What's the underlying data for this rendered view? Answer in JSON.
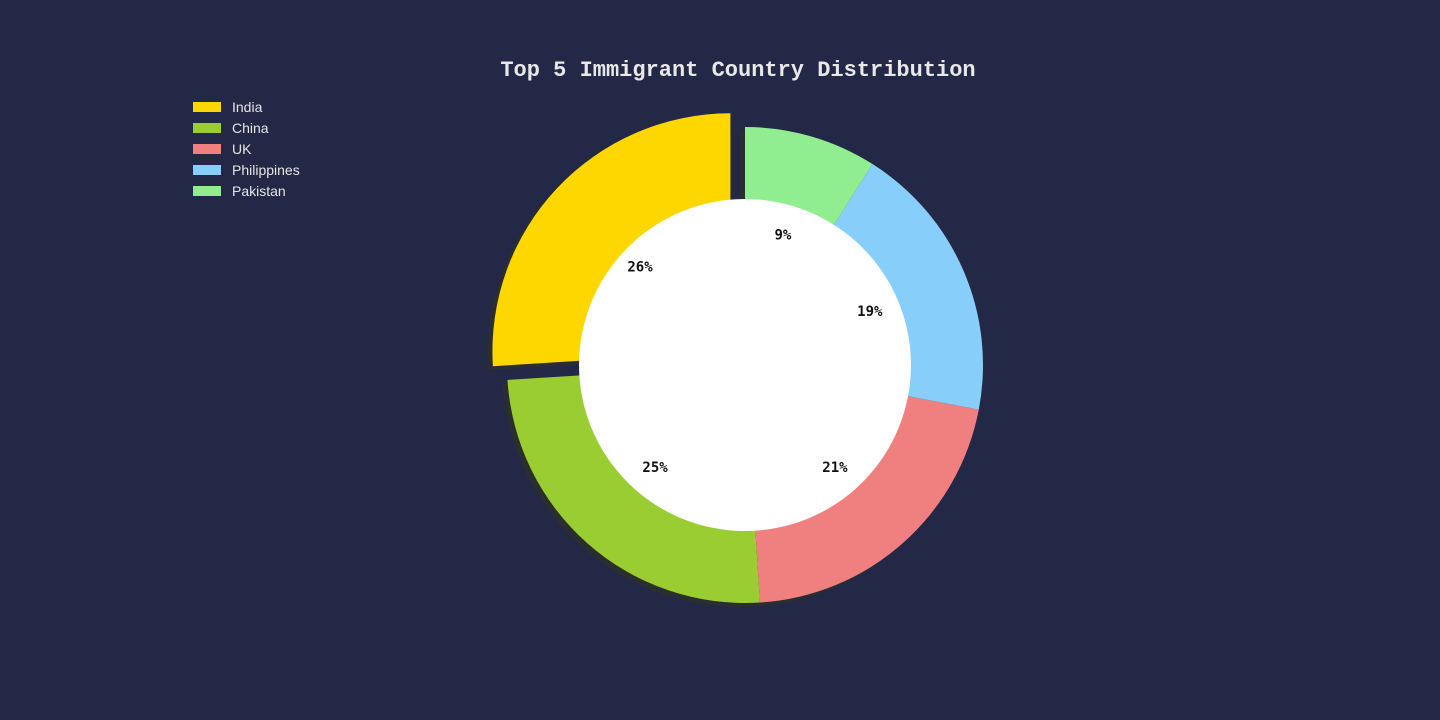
{
  "chart_data": {
    "type": "pie",
    "title": "Top 5 Immigrant Country Distribution",
    "donut": true,
    "legend_position": "top-left",
    "slices": [
      {
        "label": "India",
        "value": 26,
        "display": "26%",
        "color": "#FFD700",
        "pulled": true
      },
      {
        "label": "China",
        "value": 25,
        "display": "25%",
        "color": "#9ACD32",
        "pulled": false
      },
      {
        "label": "UK",
        "value": 21,
        "display": "21%",
        "color": "#F08080",
        "pulled": false
      },
      {
        "label": "Philippines",
        "value": 19,
        "display": "19%",
        "color": "#87CEFA",
        "pulled": false
      },
      {
        "label": "Pakistan",
        "value": 9,
        "display": "9%",
        "color": "#90EE90",
        "pulled": false
      }
    ]
  },
  "colors": {
    "background": "#222846",
    "hole": "#FFFFFF",
    "text": "#E8E8E8"
  }
}
